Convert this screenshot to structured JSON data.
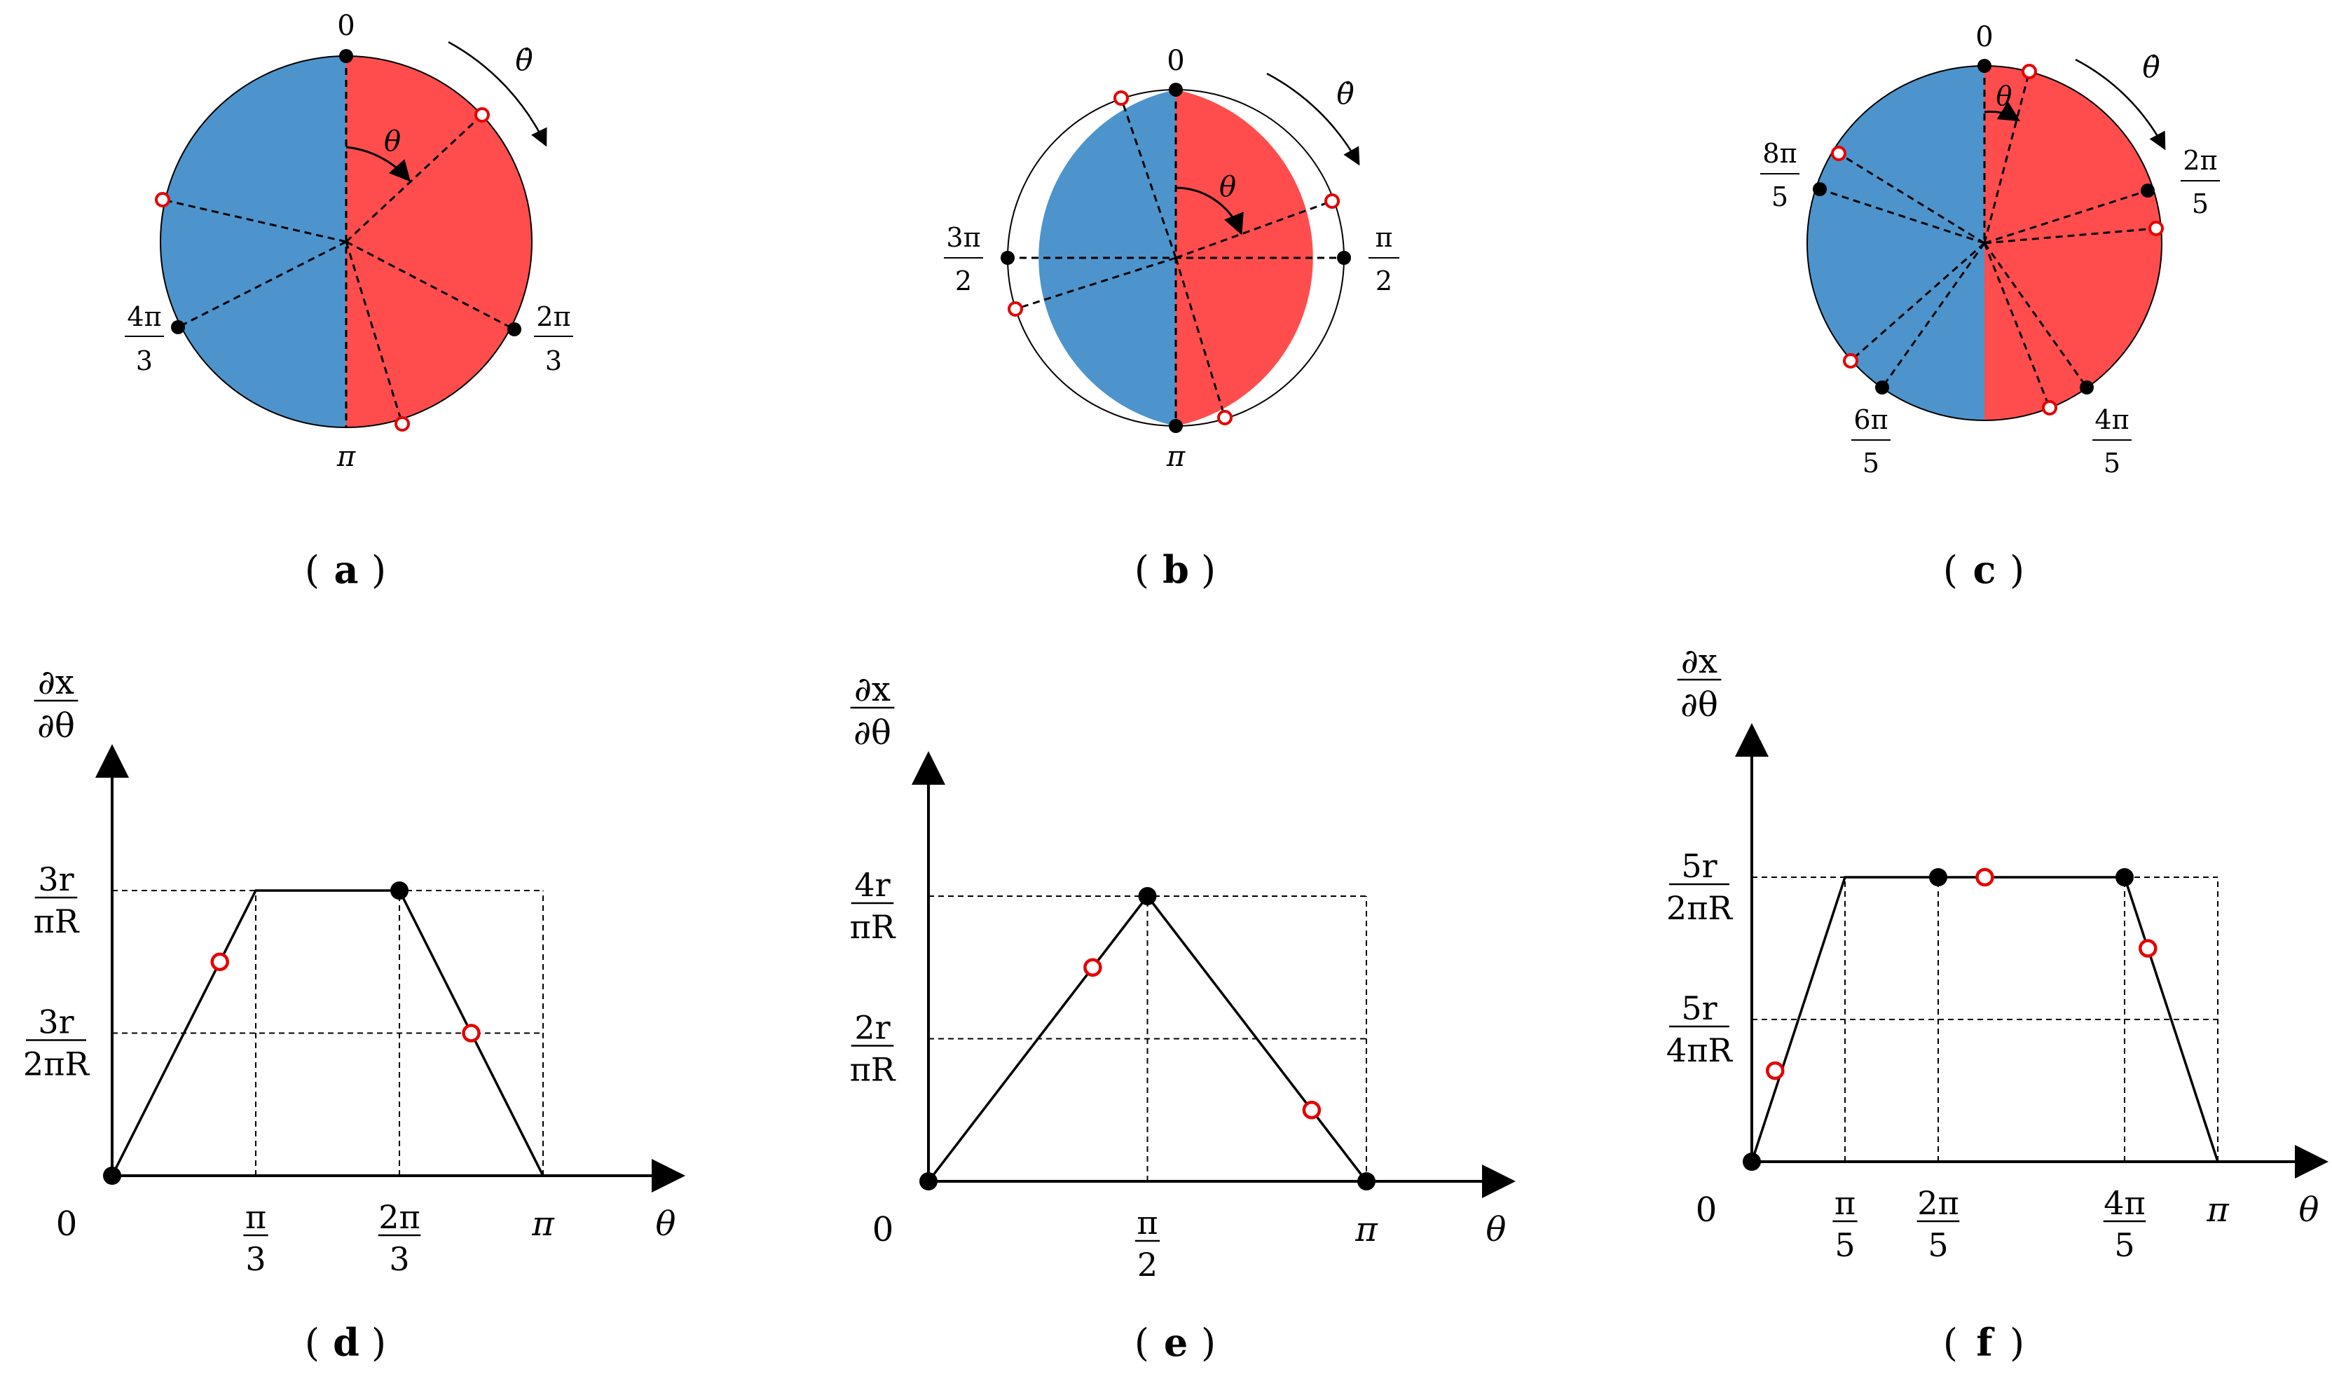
{
  "colors": {
    "red": "#ff4d4d",
    "blue": "#4d94cc",
    "marker_red": "#e60000",
    "ink": "#000000"
  },
  "captions": {
    "a": "a",
    "b": "b",
    "c": "c",
    "d": "d",
    "e": "e",
    "f": "f"
  },
  "wheels": {
    "a": {
      "n": 3,
      "labels": {
        "top": "0",
        "bottom": "π",
        "theta": "θ",
        "theta_dot": "θ̇"
      },
      "fractions": [
        {
          "num": "2π",
          "den": "3"
        },
        {
          "num": "4π",
          "den": "3"
        }
      ]
    },
    "b": {
      "n": 4,
      "labels": {
        "top": "0",
        "bottom": "π",
        "theta": "θ",
        "theta_dot": "θ̇"
      },
      "fractions": [
        {
          "num": "π",
          "den": "2"
        },
        {
          "num": "3π",
          "den": "2"
        }
      ]
    },
    "c": {
      "n": 5,
      "labels": {
        "top": "0",
        "theta": "θ",
        "theta_dot": "θ̇"
      },
      "fractions": [
        {
          "num": "2π",
          "den": "5"
        },
        {
          "num": "4π",
          "den": "5"
        },
        {
          "num": "6π",
          "den": "5"
        },
        {
          "num": "8π",
          "den": "5"
        }
      ]
    }
  },
  "chart_data": [
    {
      "type": "line",
      "panel": "d",
      "x_axis_label": "θ",
      "y_axis_label": {
        "num": "∂x",
        "den": "∂θ"
      },
      "origin_label": "0",
      "x_ticks": [
        {
          "num": "π",
          "den": "3"
        },
        {
          "num": "2π",
          "den": "3"
        },
        {
          "text": "π"
        }
      ],
      "y_ticks": [
        {
          "num": "3r",
          "den": "2πR"
        },
        {
          "num": "3r",
          "den": "πR"
        }
      ],
      "x_values": [
        0,
        0.3333,
        0.6667,
        1.0
      ],
      "y_values": [
        0,
        1,
        1,
        0
      ],
      "black_points": [
        [
          0,
          0
        ],
        [
          0.6667,
          1
        ]
      ],
      "open_red_points": [
        [
          0.25,
          0.75
        ],
        [
          0.8333,
          0.5
        ]
      ],
      "dashed_levels_y": [
        0.5,
        1
      ]
    },
    {
      "type": "line",
      "panel": "e",
      "x_axis_label": "θ",
      "y_axis_label": {
        "num": "∂x",
        "den": "∂θ"
      },
      "origin_label": "0",
      "x_ticks": [
        {
          "num": "π",
          "den": "2"
        },
        {
          "text": "π"
        }
      ],
      "y_ticks": [
        {
          "num": "2r",
          "den": "πR"
        },
        {
          "num": "4r",
          "den": "πR"
        }
      ],
      "x_values": [
        0,
        0.5,
        1.0
      ],
      "y_values": [
        0,
        1,
        0
      ],
      "black_points": [
        [
          0,
          0
        ],
        [
          0.5,
          1
        ],
        [
          1.0,
          0
        ]
      ],
      "open_red_points": [
        [
          0.375,
          0.75
        ],
        [
          0.875,
          0.25
        ]
      ],
      "dashed_levels_y": [
        0.5,
        1
      ]
    },
    {
      "type": "line",
      "panel": "f",
      "x_axis_label": "θ",
      "y_axis_label": {
        "num": "∂x",
        "den": "∂θ"
      },
      "origin_label": "0",
      "x_ticks": [
        {
          "num": "π",
          "den": "5"
        },
        {
          "num": "2π",
          "den": "5"
        },
        {
          "num": "4π",
          "den": "5"
        },
        {
          "text": "π"
        }
      ],
      "y_ticks": [
        {
          "num": "5r",
          "den": "4πR"
        },
        {
          "num": "5r",
          "den": "2πR"
        }
      ],
      "x_values": [
        0,
        0.2,
        0.8,
        1.0
      ],
      "y_values": [
        0,
        1,
        1,
        0
      ],
      "black_points": [
        [
          0,
          0
        ],
        [
          0.4,
          1
        ],
        [
          0.8,
          1
        ]
      ],
      "open_red_points": [
        [
          0.05,
          0.32
        ],
        [
          0.5,
          1
        ],
        [
          0.85,
          0.75
        ]
      ],
      "dashed_levels_y": [
        0.5,
        1
      ]
    }
  ]
}
